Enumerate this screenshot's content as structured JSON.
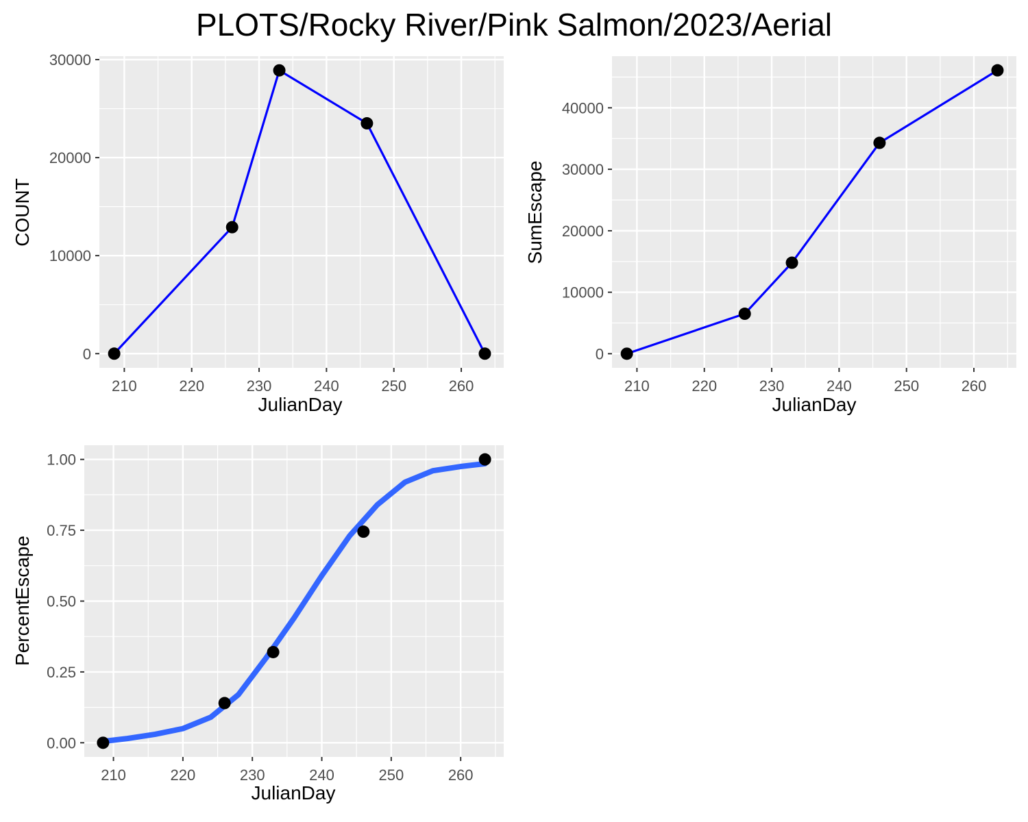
{
  "title": "PLOTS/Rocky River/Pink Salmon/2023/Aerial",
  "colors": {
    "panel_bg": "#EBEBEB",
    "grid": "#FFFFFF",
    "line": "#0000FF",
    "smooth": "#3366FF",
    "point": "#000000",
    "tick_text": "#4D4D4D"
  },
  "chart_data": [
    {
      "type": "line",
      "xlabel": "JulianDay",
      "ylabel": "COUNT",
      "x": [
        208.5,
        226,
        233,
        246,
        263.5
      ],
      "y": [
        0,
        12900,
        28900,
        23500,
        0
      ],
      "xlim": [
        206.3,
        266.3
      ],
      "ylim": [
        -1450,
        30350
      ],
      "xticks": [
        210,
        220,
        230,
        240,
        250,
        260
      ],
      "yticks": [
        0,
        10000,
        20000,
        30000
      ],
      "grid": true
    },
    {
      "type": "line",
      "xlabel": "JulianDay",
      "ylabel": "SumEscape",
      "x": [
        208.5,
        226,
        233,
        246,
        263.5
      ],
      "y": [
        0,
        6500,
        14800,
        34300,
        46100
      ],
      "xlim": [
        206.3,
        266.3
      ],
      "ylim": [
        -2300,
        48400
      ],
      "xticks": [
        210,
        220,
        230,
        240,
        250,
        260
      ],
      "yticks": [
        0,
        10000,
        20000,
        30000,
        40000
      ],
      "grid": true
    },
    {
      "type": "scatter",
      "xlabel": "JulianDay",
      "ylabel": "PercentEscape",
      "x": [
        208.5,
        226,
        233,
        246,
        263.5
      ],
      "y": [
        0,
        0.14,
        0.32,
        0.745,
        1.0
      ],
      "xlim": [
        205.8,
        266.2
      ],
      "ylim": [
        -0.05,
        1.05
      ],
      "xticks": [
        210,
        220,
        230,
        240,
        250,
        260
      ],
      "yticks": [
        0,
        0.25,
        0.5,
        0.75,
        1.0
      ],
      "ytick_labels": [
        "0.00",
        "0.25",
        "0.50",
        "0.75",
        "1.00"
      ],
      "fit_curve": {
        "type": "logistic",
        "x": [
          208.5,
          212,
          216,
          220,
          224,
          228,
          232,
          236,
          240,
          244,
          248,
          252,
          256,
          260,
          263.5
        ],
        "y": [
          0.005,
          0.015,
          0.03,
          0.05,
          0.09,
          0.17,
          0.3,
          0.44,
          0.59,
          0.73,
          0.84,
          0.92,
          0.96,
          0.975,
          0.985
        ]
      },
      "grid": true
    }
  ]
}
